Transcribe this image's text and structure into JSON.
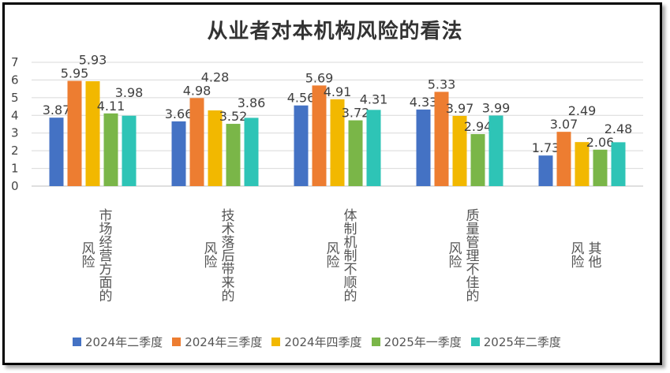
{
  "chart_data": {
    "type": "bar",
    "title": "从业者对本机构风险的看法",
    "xlabel": "",
    "ylabel": "",
    "ylim": [
      0,
      7
    ],
    "yticks": [
      "0",
      "1",
      "2",
      "3",
      "4",
      "5",
      "6",
      "7"
    ],
    "grid": true,
    "legend_position": "bottom",
    "categories": [
      "市场经营方面的风险",
      "技术落后带来的风险",
      "体制机制不顺的风险",
      "质量管理不佳的风险",
      "其他风险"
    ],
    "category_lines": [
      [
        "市场经营方面的",
        "风险"
      ],
      [
        "技术落后带来的",
        "风险"
      ],
      [
        "体制机制不顺的",
        "风险"
      ],
      [
        "质量管理不佳的",
        "风险"
      ],
      [
        "其他",
        "风险"
      ]
    ],
    "series": [
      {
        "name": "2024年二季度",
        "color": "#4472C4",
        "values": [
          3.87,
          3.66,
          4.56,
          4.33,
          1.73
        ]
      },
      {
        "name": "2024年三季度",
        "color": "#ED7D31",
        "values": [
          5.95,
          4.98,
          5.69,
          5.33,
          3.07
        ]
      },
      {
        "name": "2024年四季度",
        "color": "#F2B800",
        "values": [
          5.93,
          4.28,
          4.91,
          3.97,
          2.49
        ]
      },
      {
        "name": "2025年一季度",
        "color": "#7AB648",
        "values": [
          4.11,
          3.52,
          3.72,
          2.94,
          2.06
        ]
      },
      {
        "name": "2025年二季度",
        "color": "#2EC4B6",
        "values": [
          3.98,
          3.86,
          4.31,
          3.99,
          2.48
        ]
      }
    ]
  }
}
